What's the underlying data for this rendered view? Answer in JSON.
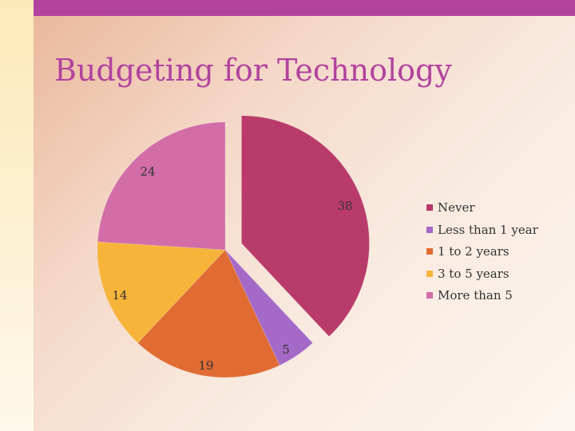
{
  "slide": {
    "title": "Budgeting for Technology"
  },
  "colors": {
    "accent": "#b1439e",
    "series": [
      "#b83b6a",
      "#a56ac7",
      "#e06c33",
      "#f6b43a",
      "#d26da8"
    ]
  },
  "chart_data": {
    "type": "pie",
    "title": "",
    "categories": [
      "Never",
      "Less than 1 year",
      "1 to 2 years",
      "3 to 5 years",
      "More than 5"
    ],
    "values": [
      38,
      5,
      19,
      14,
      24
    ],
    "exploded": [
      "Never"
    ],
    "data_labels": [
      "38",
      "5",
      "19",
      "14",
      "24"
    ],
    "legend_position": "right"
  }
}
